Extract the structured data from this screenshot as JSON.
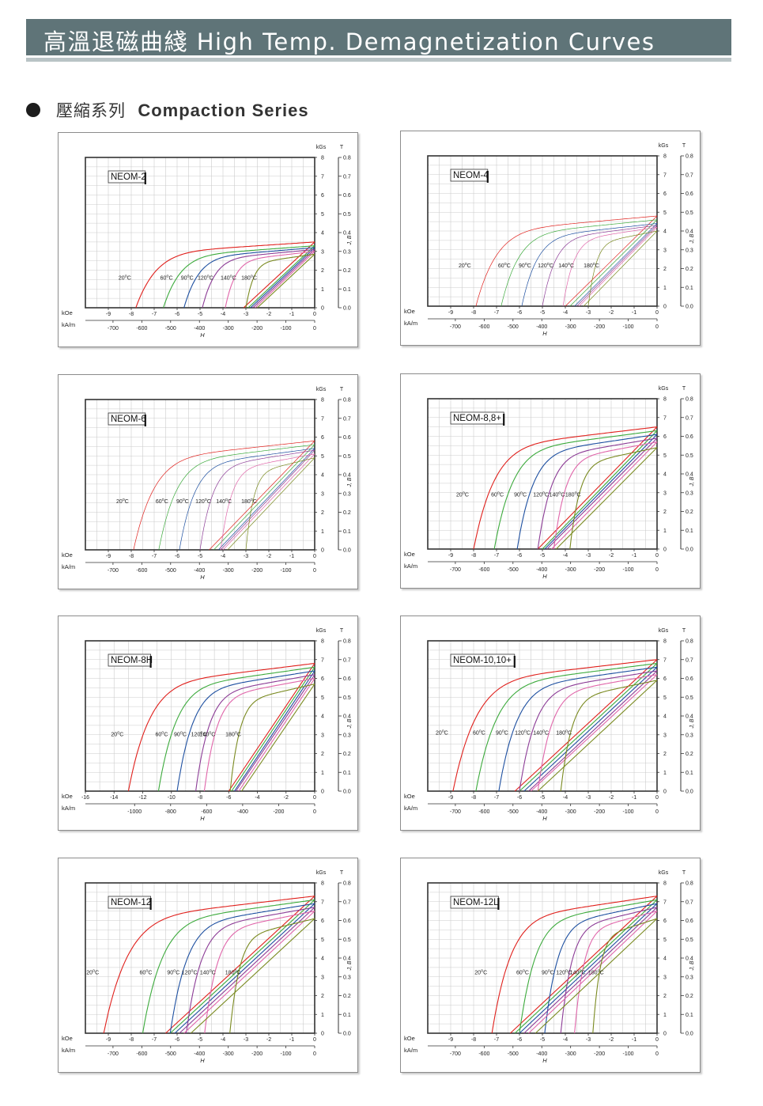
{
  "header": {
    "title": "高溫退磁曲綫  High Temp. Demagnetization Curves"
  },
  "section": {
    "title_zh": "壓縮系列",
    "title_en": "Compaction Series"
  },
  "colors": {
    "banner": "#5f7478",
    "curve_20C": "#e0201c",
    "curve_60C": "#3caa3c",
    "curve_90C": "#1d4fa0",
    "curve_120C": "#8c3c96",
    "curve_140C": "#e066aa",
    "curve_180C": "#7a8a20",
    "grid": "#cccccc"
  },
  "chart_data": [
    {
      "type": "line",
      "title": "NEOM-2",
      "xlabel": "H",
      "ylabel": "J, B",
      "x_unit_top": "kOe",
      "x_unit_bottom": "kA/m",
      "y_unit_left": "kGs",
      "y_unit_right": "T",
      "xlim": [
        -10,
        0
      ],
      "ylim": [
        0,
        8
      ],
      "x_ticks": [
        "-9",
        "-8",
        "-7",
        "-6",
        "-5",
        "-4",
        "-3",
        "-2",
        "-1",
        "0"
      ],
      "x2_ticks": [
        "-700",
        "-600",
        "-500",
        "-400",
        "-300",
        "-200",
        "-100",
        "0"
      ],
      "y_ticks": [
        "0",
        "1",
        "2",
        "3",
        "4",
        "5",
        "6",
        "7",
        "8"
      ],
      "y2_ticks": [
        "0.0",
        "0.1",
        "0.2",
        "0.3",
        "0.4",
        "0.5",
        "0.6",
        "0.7",
        "0.8"
      ],
      "grid": true,
      "line_style": "bold",
      "temp_labels": [
        "20°C",
        "60°C",
        "90°C",
        "120°C",
        "140°C",
        "180°C"
      ],
      "series": [
        {
          "name": "20°C",
          "color": "#e0201c",
          "br": 3.5,
          "hcj": 7.8,
          "hcb": 3.1
        },
        {
          "name": "60°C",
          "color": "#3caa3c",
          "br": 3.3,
          "hcj": 6.6,
          "hcb": 2.9
        },
        {
          "name": "90°C",
          "color": "#1d4fa0",
          "br": 3.2,
          "hcj": 5.7,
          "hcb": 2.8
        },
        {
          "name": "120°C",
          "color": "#8c3c96",
          "br": 3.1,
          "hcj": 4.9,
          "hcb": 2.7
        },
        {
          "name": "140°C",
          "color": "#e066aa",
          "br": 3.0,
          "hcj": 3.9,
          "hcb": 2.6
        },
        {
          "name": "180°C",
          "color": "#7a8a20",
          "br": 2.85,
          "hcj": 3.0,
          "hcb": 2.5
        }
      ]
    },
    {
      "type": "line",
      "title": "NEOM-4",
      "xlabel": "H",
      "ylabel": "J, B",
      "x_unit_top": "kOe",
      "x_unit_bottom": "kA/m",
      "y_unit_left": "kGs",
      "y_unit_right": "T",
      "xlim": [
        -10,
        0
      ],
      "ylim": [
        0,
        8
      ],
      "x_ticks": [
        "-9",
        "-8",
        "-7",
        "-6",
        "-5",
        "-4",
        "-3",
        "-2",
        "-1",
        "0"
      ],
      "x2_ticks": [
        "-700",
        "-600",
        "-500",
        "-400",
        "-300",
        "-200",
        "-100",
        "0"
      ],
      "y_ticks": [
        "0",
        "1",
        "2",
        "3",
        "4",
        "5",
        "6",
        "7",
        "8"
      ],
      "y2_ticks": [
        "0.0",
        "0.1",
        "0.2",
        "0.3",
        "0.4",
        "0.5",
        "0.6",
        "0.7",
        "0.8"
      ],
      "grid": true,
      "line_style": "thin",
      "temp_labels": [
        "20°C",
        "60°C",
        "90°C",
        "120°C",
        "140°C",
        "180°C"
      ],
      "series": [
        {
          "name": "20°C",
          "color": "#e0201c",
          "br": 4.8,
          "hcj": 7.9,
          "hcb": 4.0
        },
        {
          "name": "60°C",
          "color": "#3caa3c",
          "br": 4.6,
          "hcj": 6.8,
          "hcb": 3.8
        },
        {
          "name": "90°C",
          "color": "#1d4fa0",
          "br": 4.4,
          "hcj": 5.9,
          "hcb": 3.6
        },
        {
          "name": "120°C",
          "color": "#8c3c96",
          "br": 4.3,
          "hcj": 5.0,
          "hcb": 3.5
        },
        {
          "name": "140°C",
          "color": "#e066aa",
          "br": 4.2,
          "hcj": 4.1,
          "hcb": 3.4
        },
        {
          "name": "180°C",
          "color": "#7a8a20",
          "br": 4.0,
          "hcj": 3.0,
          "hcb": 3.2
        }
      ]
    },
    {
      "type": "line",
      "title": "NEOM-6",
      "xlabel": "H",
      "ylabel": "J, B",
      "x_unit_top": "kOe",
      "x_unit_bottom": "kA/m",
      "y_unit_left": "kGs",
      "y_unit_right": "T",
      "xlim": [
        -10,
        0
      ],
      "ylim": [
        0,
        8
      ],
      "x_ticks": [
        "-9",
        "-8",
        "-7",
        "-6",
        "-5",
        "-4",
        "-3",
        "-2",
        "-1",
        "0"
      ],
      "x2_ticks": [
        "-700",
        "-600",
        "-500",
        "-400",
        "-300",
        "-200",
        "-100",
        "0"
      ],
      "y_ticks": [
        "0",
        "1",
        "2",
        "3",
        "4",
        "5",
        "6",
        "7",
        "8"
      ],
      "y2_ticks": [
        "0.0",
        "0.1",
        "0.2",
        "0.3",
        "0.4",
        "0.5",
        "0.6",
        "0.7",
        "0.8"
      ],
      "grid": true,
      "line_style": "thin",
      "temp_labels": [
        "20°C",
        "60°C",
        "90°C",
        "120°C",
        "140°C",
        "180°C"
      ],
      "series": [
        {
          "name": "20°C",
          "color": "#e0201c",
          "br": 5.8,
          "hcj": 7.9,
          "hcb": 4.6
        },
        {
          "name": "60°C",
          "color": "#3caa3c",
          "br": 5.6,
          "hcj": 6.8,
          "hcb": 4.4
        },
        {
          "name": "90°C",
          "color": "#1d4fa0",
          "br": 5.4,
          "hcj": 5.9,
          "hcb": 4.2
        },
        {
          "name": "120°C",
          "color": "#8c3c96",
          "br": 5.3,
          "hcj": 5.0,
          "hcb": 4.1
        },
        {
          "name": "140°C",
          "color": "#e066aa",
          "br": 5.1,
          "hcj": 4.1,
          "hcb": 4.0
        },
        {
          "name": "180°C",
          "color": "#7a8a20",
          "br": 4.9,
          "hcj": 3.0,
          "hcb": 3.8
        }
      ]
    },
    {
      "type": "line",
      "title": "NEOM-8,8+",
      "xlabel": "H",
      "ylabel": "J, B",
      "x_unit_top": "kOe",
      "x_unit_bottom": "kA/m",
      "y_unit_left": "kGs",
      "y_unit_right": "T",
      "xlim": [
        -10,
        0
      ],
      "ylim": [
        0,
        8
      ],
      "x_ticks": [
        "-9",
        "-8",
        "-7",
        "-6",
        "-5",
        "-4",
        "-3",
        "-2",
        "-1",
        "0"
      ],
      "x2_ticks": [
        "-700",
        "-600",
        "-500",
        "-400",
        "-300",
        "-200",
        "-100",
        "0"
      ],
      "y_ticks": [
        "0",
        "1",
        "2",
        "3",
        "4",
        "5",
        "6",
        "7",
        "8"
      ],
      "y2_ticks": [
        "0.0",
        "0.1",
        "0.2",
        "0.3",
        "0.4",
        "0.5",
        "0.6",
        "0.7",
        "0.8"
      ],
      "grid": true,
      "line_style": "bold",
      "temp_labels": [
        "20°C",
        "60°C",
        "90°C",
        "120°C",
        "140°C",
        "180°C"
      ],
      "series": [
        {
          "name": "20°C",
          "color": "#e0201c",
          "br": 6.5,
          "hcj": 8.0,
          "hcb": 5.2
        },
        {
          "name": "60°C",
          "color": "#3caa3c",
          "br": 6.3,
          "hcj": 7.1,
          "hcb": 5.0
        },
        {
          "name": "90°C",
          "color": "#1d4fa0",
          "br": 6.1,
          "hcj": 6.1,
          "hcb": 4.9
        },
        {
          "name": "120°C",
          "color": "#8c3c96",
          "br": 5.9,
          "hcj": 5.2,
          "hcb": 4.8
        },
        {
          "name": "140°C",
          "color": "#e066aa",
          "br": 5.7,
          "hcj": 4.5,
          "hcb": 4.6
        },
        {
          "name": "180°C",
          "color": "#7a8a20",
          "br": 5.4,
          "hcj": 3.8,
          "hcb": 4.4
        }
      ]
    },
    {
      "type": "line",
      "title": "NEOM-8H",
      "xlabel": "H",
      "ylabel": "J, B",
      "x_unit_top": "kOe",
      "x_unit_bottom": "kA/m",
      "y_unit_left": "kGs",
      "y_unit_right": "T",
      "xlim": [
        -16,
        0
      ],
      "ylim": [
        0,
        8
      ],
      "x_ticks": [
        "-16",
        "-14",
        "-12",
        "-10",
        "-8",
        "-6",
        "-4",
        "-2",
        "0"
      ],
      "x2_ticks": [
        "-1000",
        "-800",
        "-600",
        "-400",
        "-200",
        "0"
      ],
      "y_ticks": [
        "0",
        "1",
        "2",
        "3",
        "4",
        "5",
        "6",
        "7",
        "8"
      ],
      "y2_ticks": [
        "0.0",
        "0.1",
        "0.2",
        "0.3",
        "0.4",
        "0.5",
        "0.6",
        "0.7",
        "0.8"
      ],
      "grid": true,
      "line_style": "bold",
      "temp_labels": [
        "20°C",
        "60°C",
        "90°C",
        "120°C",
        "140°C",
        "180°C"
      ],
      "series": [
        {
          "name": "20°C",
          "color": "#e0201c",
          "br": 6.8,
          "hcj": 13.0,
          "hcb": 6.0
        },
        {
          "name": "60°C",
          "color": "#3caa3c",
          "br": 6.6,
          "hcj": 10.9,
          "hcb": 5.8
        },
        {
          "name": "90°C",
          "color": "#1d4fa0",
          "br": 6.4,
          "hcj": 9.6,
          "hcb": 5.6
        },
        {
          "name": "120°C",
          "color": "#8c3c96",
          "br": 6.2,
          "hcj": 8.3,
          "hcb": 5.5
        },
        {
          "name": "140°C",
          "color": "#e066aa",
          "br": 6.0,
          "hcj": 7.7,
          "hcb": 5.3
        },
        {
          "name": "180°C",
          "color": "#7a8a20",
          "br": 5.7,
          "hcj": 5.9,
          "hcb": 5.1
        }
      ]
    },
    {
      "type": "line",
      "title": "NEOM-10,10+",
      "xlabel": "H",
      "ylabel": "J, B",
      "x_unit_top": "kOe",
      "x_unit_bottom": "kA/m",
      "y_unit_left": "kGs",
      "y_unit_right": "T",
      "xlim": [
        -10,
        0
      ],
      "ylim": [
        0,
        8
      ],
      "x_ticks": [
        "-9",
        "-8",
        "-7",
        "-6",
        "-5",
        "-4",
        "-3",
        "-2",
        "-1",
        "0"
      ],
      "x2_ticks": [
        "-700",
        "-600",
        "-500",
        "-400",
        "-300",
        "-200",
        "-100",
        "0"
      ],
      "y_ticks": [
        "0",
        "1",
        "2",
        "3",
        "4",
        "5",
        "6",
        "7",
        "8"
      ],
      "y2_ticks": [
        "0.0",
        "0.1",
        "0.2",
        "0.3",
        "0.4",
        "0.5",
        "0.6",
        "0.7",
        "0.8"
      ],
      "grid": true,
      "line_style": "bold",
      "temp_labels": [
        "20°C",
        "60°C",
        "90°C",
        "120°C",
        "140°C",
        "180°C"
      ],
      "series": [
        {
          "name": "20°C",
          "color": "#e0201c",
          "br": 7.0,
          "hcj": 8.9,
          "hcb": 6.2
        },
        {
          "name": "60°C",
          "color": "#3caa3c",
          "br": 6.8,
          "hcj": 7.9,
          "hcb": 6.0
        },
        {
          "name": "90°C",
          "color": "#1d4fa0",
          "br": 6.6,
          "hcj": 6.9,
          "hcb": 5.8
        },
        {
          "name": "120°C",
          "color": "#8c3c96",
          "br": 6.4,
          "hcj": 6.0,
          "hcb": 5.6
        },
        {
          "name": "140°C",
          "color": "#e066aa",
          "br": 6.2,
          "hcj": 5.2,
          "hcb": 5.5
        },
        {
          "name": "180°C",
          "color": "#7a8a20",
          "br": 5.9,
          "hcj": 4.2,
          "hcb": 5.2
        }
      ]
    },
    {
      "type": "line",
      "title": "NEOM-12",
      "xlabel": "H",
      "ylabel": "J, B",
      "x_unit_top": "kOe",
      "x_unit_bottom": "kA/m",
      "y_unit_left": "kGs",
      "y_unit_right": "T",
      "xlim": [
        -10,
        0
      ],
      "ylim": [
        0,
        8
      ],
      "x_ticks": [
        "-9",
        "-8",
        "-7",
        "-6",
        "-5",
        "-4",
        "-3",
        "-2",
        "-1",
        "0"
      ],
      "x2_ticks": [
        "-700",
        "-600",
        "-500",
        "-400",
        "-300",
        "-200",
        "-100",
        "0"
      ],
      "y_ticks": [
        "0",
        "1",
        "2",
        "3",
        "4",
        "5",
        "6",
        "7",
        "8"
      ],
      "y2_ticks": [
        "0.0",
        "0.1",
        "0.2",
        "0.3",
        "0.4",
        "0.5",
        "0.6",
        "0.7",
        "0.8"
      ],
      "grid": true,
      "line_style": "bold",
      "temp_labels": [
        "20°C",
        "60°C",
        "90°C",
        "120°C",
        "140°C",
        "180°C"
      ],
      "series": [
        {
          "name": "20°C",
          "color": "#e0201c",
          "br": 7.3,
          "hcj": 9.2,
          "hcb": 6.5
        },
        {
          "name": "60°C",
          "color": "#3caa3c",
          "br": 7.1,
          "hcj": 7.5,
          "hcb": 6.3
        },
        {
          "name": "90°C",
          "color": "#1d4fa0",
          "br": 6.9,
          "hcj": 6.3,
          "hcb": 6.1
        },
        {
          "name": "120°C",
          "color": "#8c3c96",
          "br": 6.7,
          "hcj": 5.6,
          "hcb": 5.9
        },
        {
          "name": "140°C",
          "color": "#e066aa",
          "br": 6.5,
          "hcj": 4.8,
          "hcb": 5.7
        },
        {
          "name": "180°C",
          "color": "#7a8a20",
          "br": 6.1,
          "hcj": 3.7,
          "hcb": 5.4
        }
      ]
    },
    {
      "type": "line",
      "title": "NEOM-12L",
      "xlabel": "H",
      "ylabel": "J, B",
      "x_unit_top": "kOe",
      "x_unit_bottom": "kA/m",
      "y_unit_left": "kGs",
      "y_unit_right": "T",
      "xlim": [
        -10,
        0
      ],
      "ylim": [
        0,
        8
      ],
      "x_ticks": [
        "-9",
        "-8",
        "-7",
        "-6",
        "-5",
        "-4",
        "-3",
        "-2",
        "-1",
        "0"
      ],
      "x2_ticks": [
        "-700",
        "-600",
        "-500",
        "-400",
        "-300",
        "-200",
        "-100",
        "0"
      ],
      "y_ticks": [
        "0",
        "1",
        "2",
        "3",
        "4",
        "5",
        "6",
        "7",
        "8"
      ],
      "y2_ticks": [
        "0.0",
        "0.1",
        "0.2",
        "0.3",
        "0.4",
        "0.5",
        "0.6",
        "0.7",
        "0.8"
      ],
      "grid": true,
      "line_style": "bold",
      "temp_labels": [
        "20°C",
        "60°C",
        "90°C",
        "120°C",
        "140°C",
        "180°C"
      ],
      "series": [
        {
          "name": "20°C",
          "color": "#e0201c",
          "br": 7.3,
          "hcj": 7.2,
          "hcb": 6.4
        },
        {
          "name": "60°C",
          "color": "#3caa3c",
          "br": 7.1,
          "hcj": 6.0,
          "hcb": 6.2
        },
        {
          "name": "90°C",
          "color": "#1d4fa0",
          "br": 6.9,
          "hcj": 4.9,
          "hcb": 6.0
        },
        {
          "name": "120°C",
          "color": "#8c3c96",
          "br": 6.7,
          "hcj": 4.2,
          "hcb": 5.8
        },
        {
          "name": "140°C",
          "color": "#e066aa",
          "br": 6.5,
          "hcj": 3.6,
          "hcb": 5.6
        },
        {
          "name": "180°C",
          "color": "#7a8a20",
          "br": 6.1,
          "hcj": 2.8,
          "hcb": 5.3
        }
      ]
    }
  ]
}
